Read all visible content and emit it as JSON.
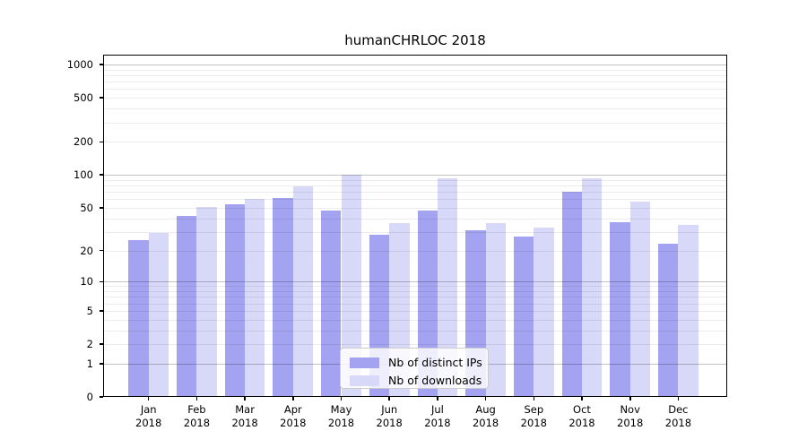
{
  "title": "humanCHRLOC 2018",
  "legend": {
    "ips_label": "Nb of distinct IPs",
    "downloads_label": "Nb of downloads"
  },
  "colors": {
    "ips_bar": "#a3a3f1",
    "downloads_bar": "#d8d8f8",
    "major_grid": "rgba(0,0,0,0.24)",
    "minor_grid": "rgba(0,0,0,0.075)",
    "axis": "#000000"
  },
  "x_axis": {
    "year": "2018",
    "months": [
      "Jan",
      "Feb",
      "Mar",
      "Apr",
      "May",
      "Jun",
      "Jul",
      "Aug",
      "Sep",
      "Oct",
      "Nov",
      "Dec"
    ]
  },
  "y_axis": {
    "ticks": [
      0,
      1,
      2,
      5,
      10,
      20,
      50,
      100,
      200,
      500,
      1000
    ],
    "major_grid_at": [
      1,
      10,
      100,
      1000
    ],
    "scale": "log1p"
  },
  "chart_data": {
    "type": "bar",
    "title": "humanCHRLOC 2018",
    "categories": [
      "Jan 2018",
      "Feb 2018",
      "Mar 2018",
      "Apr 2018",
      "May 2018",
      "Jun 2018",
      "Jul 2018",
      "Aug 2018",
      "Sep 2018",
      "Oct 2018",
      "Nov 2018",
      "Dec 2018"
    ],
    "series": [
      {
        "name": "Nb of distinct IPs",
        "values": [
          25,
          42,
          54,
          62,
          47,
          28,
          47,
          31,
          27,
          70,
          37,
          23
        ]
      },
      {
        "name": "Nb of downloads",
        "values": [
          29,
          51,
          60,
          78,
          100,
          36,
          93,
          36,
          33,
          93,
          57,
          35
        ]
      }
    ],
    "xlabel": "",
    "ylabel": "",
    "yscale": "log1p",
    "ylim": [
      0,
      1000
    ],
    "yticks": [
      0,
      1,
      2,
      5,
      10,
      20,
      50,
      100,
      200,
      500,
      1000
    ],
    "grid": true,
    "legend_position": "lower center"
  }
}
